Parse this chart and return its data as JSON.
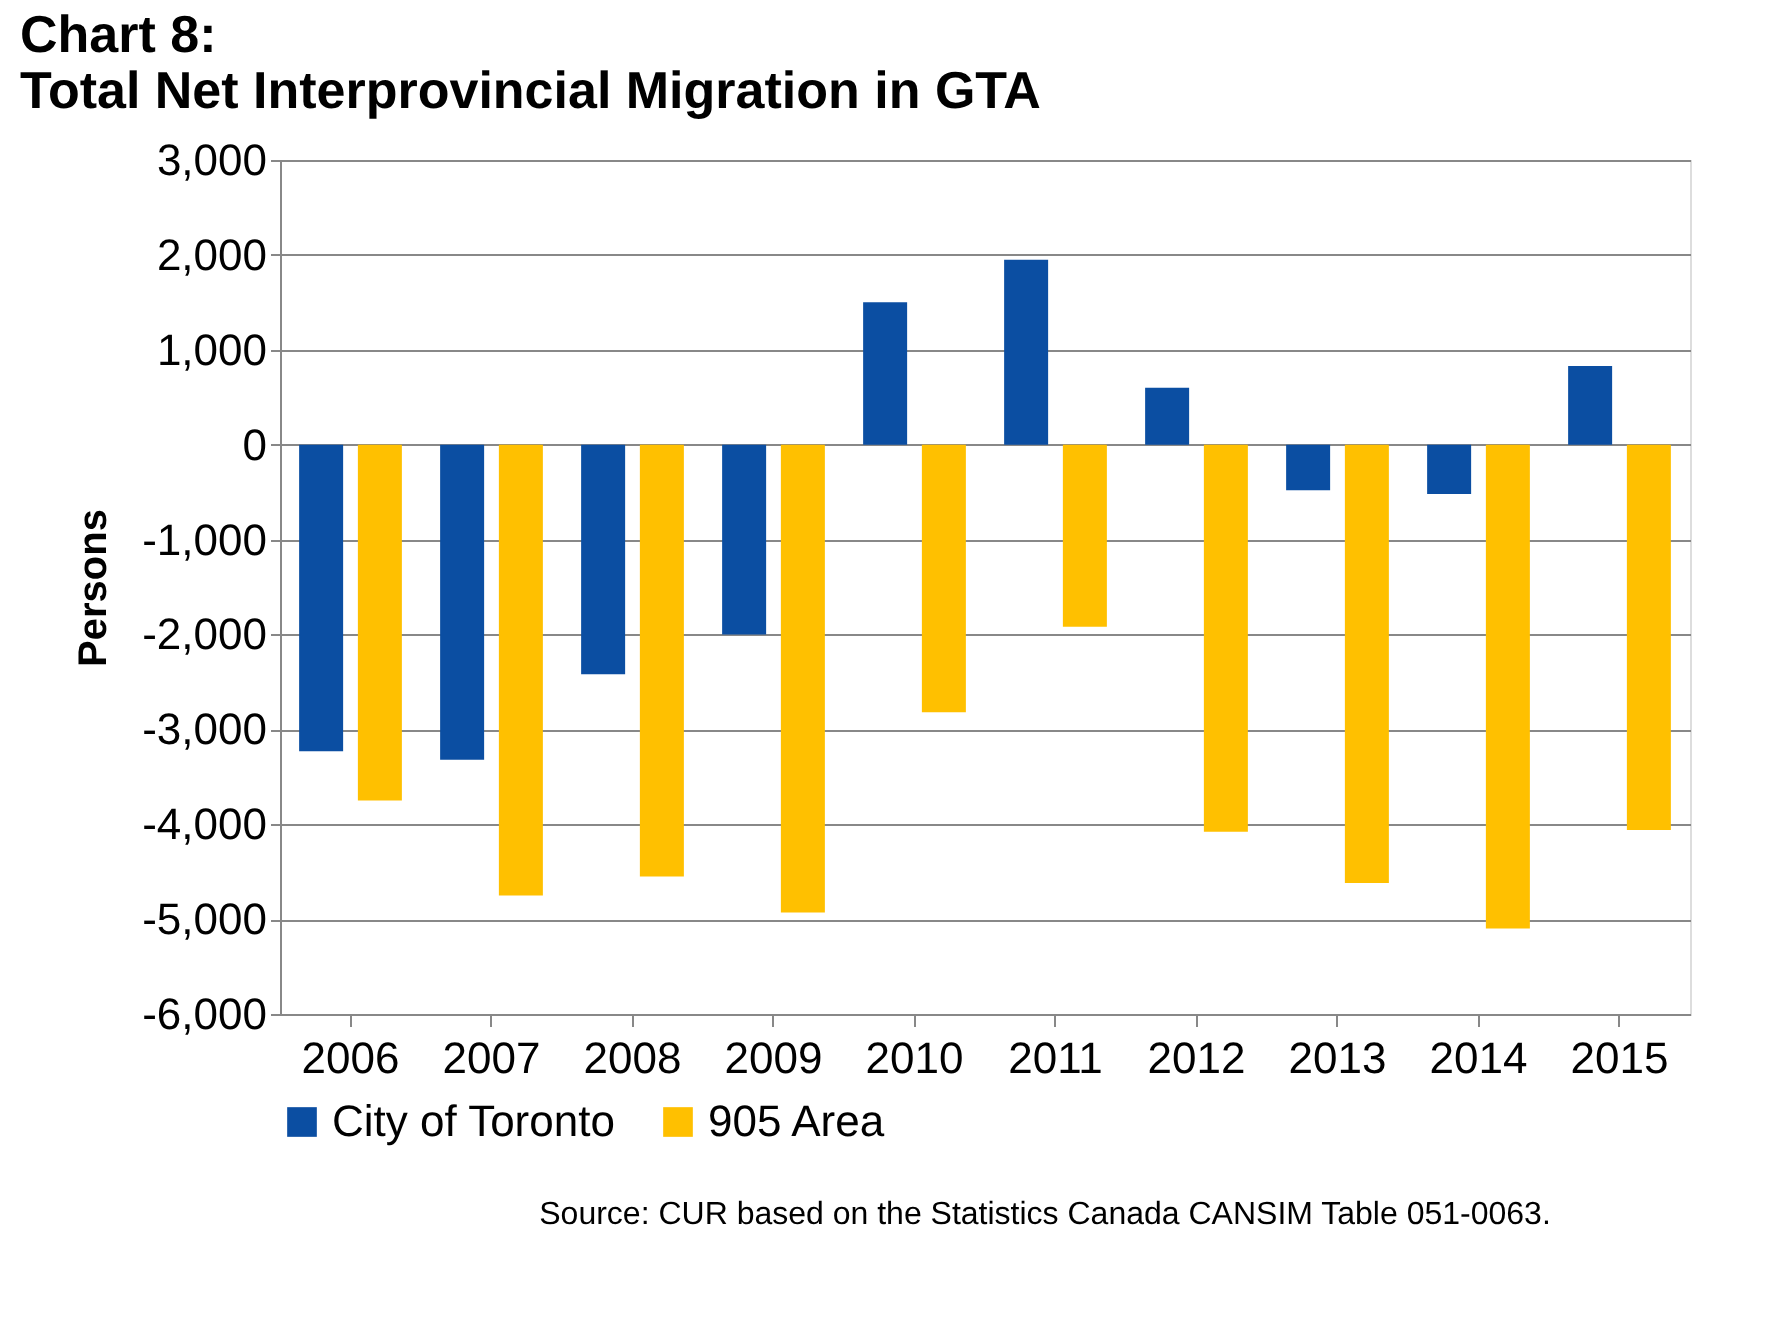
{
  "chart_data": {
    "type": "bar",
    "title": [
      "Chart 8:",
      "Total Net Interprovincial Migration in GTA"
    ],
    "ylabel": "Persons",
    "categories": [
      "2006",
      "2007",
      "2008",
      "2009",
      "2010",
      "2011",
      "2012",
      "2013",
      "2014",
      "2015"
    ],
    "series": [
      {
        "name": "City of Toronto",
        "color": "#0b4ea2",
        "values": [
          -3230,
          -3320,
          -2420,
          -2000,
          1500,
          1950,
          600,
          -480,
          -520,
          830
        ]
      },
      {
        "name": "905 Area",
        "color": "#ffc000",
        "values": [
          -3750,
          -4750,
          -4550,
          -4930,
          -2820,
          -1920,
          -4080,
          -4620,
          -5100,
          -4060
        ]
      }
    ],
    "ylim": [
      -6000,
      3000
    ],
    "yticks": [
      {
        "value": -6000,
        "label": "-6,000"
      },
      {
        "value": -5000,
        "label": "-5,000"
      },
      {
        "value": -4000,
        "label": "-4,000"
      },
      {
        "value": -3000,
        "label": "-3,000"
      },
      {
        "value": -2000,
        "label": "-2,000"
      },
      {
        "value": -1000,
        "label": "-1,000"
      },
      0,
      {
        "value": 1000,
        "label": "1,000"
      },
      {
        "value": 2000,
        "label": "2,000"
      },
      {
        "value": 3000,
        "label": "3,000"
      }
    ],
    "grid": "y",
    "legend": "bottom",
    "annotations": [
      "Source: CUR based on the Statistics Canada CANSIM Table 051-0063."
    ]
  }
}
